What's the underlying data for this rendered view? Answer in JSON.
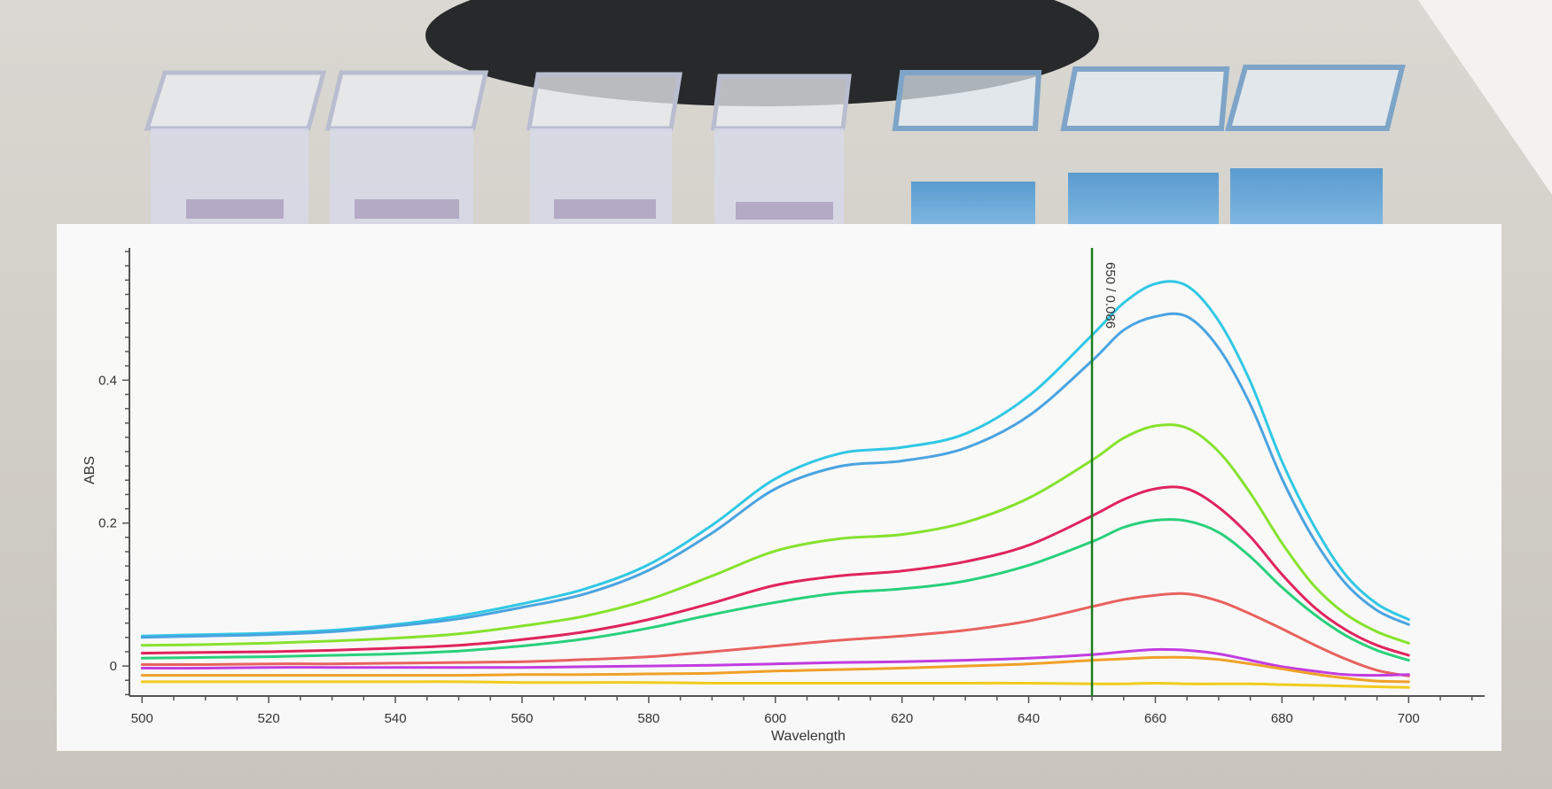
{
  "chart_data": {
    "type": "line",
    "title": "",
    "xlabel": "Wavelength",
    "ylabel": "ABS",
    "xlim": [
      498,
      712
    ],
    "ylim": [
      -0.042,
      0.585
    ],
    "xticks": [
      500,
      520,
      540,
      560,
      580,
      600,
      620,
      640,
      660,
      680,
      700
    ],
    "yticks": [
      0,
      0.2,
      0.4
    ],
    "grid": false,
    "legend": "none",
    "cursor": {
      "x": 650,
      "label": "650 / 0.086",
      "color": "#1e7d1e"
    },
    "x": [
      500,
      510,
      520,
      530,
      540,
      550,
      560,
      570,
      580,
      590,
      600,
      610,
      620,
      630,
      640,
      650,
      655,
      660,
      665,
      670,
      675,
      680,
      685,
      690,
      695,
      700
    ],
    "series": [
      {
        "color": "#30c8e4",
        "values": [
          0.042,
          0.044,
          0.046,
          0.05,
          0.058,
          0.07,
          0.087,
          0.108,
          0.142,
          0.197,
          0.262,
          0.297,
          0.306,
          0.325,
          0.378,
          0.463,
          0.508,
          0.535,
          0.532,
          0.483,
          0.398,
          0.286,
          0.197,
          0.128,
          0.087,
          0.065
        ]
      },
      {
        "color": "#4aa4e0",
        "values": [
          0.04,
          0.042,
          0.044,
          0.048,
          0.056,
          0.066,
          0.082,
          0.101,
          0.134,
          0.186,
          0.248,
          0.279,
          0.287,
          0.305,
          0.35,
          0.427,
          0.47,
          0.489,
          0.489,
          0.445,
          0.366,
          0.262,
          0.178,
          0.116,
          0.078,
          0.058
        ]
      },
      {
        "color": "#86e22e",
        "values": [
          0.029,
          0.03,
          0.032,
          0.035,
          0.039,
          0.045,
          0.056,
          0.07,
          0.093,
          0.126,
          0.161,
          0.178,
          0.184,
          0.201,
          0.235,
          0.288,
          0.319,
          0.336,
          0.333,
          0.3,
          0.242,
          0.172,
          0.113,
          0.073,
          0.048,
          0.032
        ]
      },
      {
        "color": "#e0245e",
        "values": [
          0.018,
          0.019,
          0.02,
          0.022,
          0.025,
          0.029,
          0.037,
          0.048,
          0.065,
          0.088,
          0.113,
          0.126,
          0.133,
          0.146,
          0.169,
          0.21,
          0.233,
          0.248,
          0.248,
          0.222,
          0.181,
          0.128,
          0.083,
          0.051,
          0.029,
          0.015
        ]
      },
      {
        "color": "#28d07a",
        "values": [
          0.011,
          0.012,
          0.013,
          0.015,
          0.017,
          0.021,
          0.028,
          0.038,
          0.053,
          0.072,
          0.089,
          0.102,
          0.108,
          0.119,
          0.141,
          0.174,
          0.194,
          0.204,
          0.203,
          0.187,
          0.153,
          0.11,
          0.073,
          0.043,
          0.022,
          0.008
        ]
      },
      {
        "color": "#e8625e",
        "values": [
          0.002,
          0.002,
          0.003,
          0.003,
          0.004,
          0.005,
          0.006,
          0.009,
          0.013,
          0.02,
          0.028,
          0.036,
          0.042,
          0.05,
          0.063,
          0.083,
          0.093,
          0.099,
          0.101,
          0.091,
          0.073,
          0.052,
          0.03,
          0.01,
          -0.006,
          -0.014
        ]
      },
      {
        "color": "#c23ce0",
        "values": [
          -0.003,
          -0.003,
          -0.002,
          -0.002,
          -0.002,
          -0.002,
          -0.002,
          -0.001,
          0.0,
          0.001,
          0.003,
          0.005,
          0.006,
          0.008,
          0.011,
          0.016,
          0.02,
          0.023,
          0.022,
          0.017,
          0.008,
          -0.001,
          -0.007,
          -0.012,
          -0.013,
          -0.012
        ]
      },
      {
        "color": "#f0a028",
        "values": [
          -0.013,
          -0.013,
          -0.013,
          -0.013,
          -0.013,
          -0.013,
          -0.012,
          -0.012,
          -0.011,
          -0.01,
          -0.007,
          -0.005,
          -0.003,
          0.0,
          0.003,
          0.008,
          0.01,
          0.012,
          0.012,
          0.009,
          0.003,
          -0.004,
          -0.011,
          -0.017,
          -0.021,
          -0.022
        ]
      },
      {
        "color": "#f2cc1e",
        "values": [
          -0.022,
          -0.022,
          -0.022,
          -0.022,
          -0.022,
          -0.022,
          -0.023,
          -0.023,
          -0.023,
          -0.024,
          -0.024,
          -0.024,
          -0.024,
          -0.024,
          -0.024,
          -0.025,
          -0.025,
          -0.024,
          -0.025,
          -0.025,
          -0.025,
          -0.026,
          -0.027,
          -0.028,
          -0.029,
          -0.03
        ]
      }
    ]
  }
}
